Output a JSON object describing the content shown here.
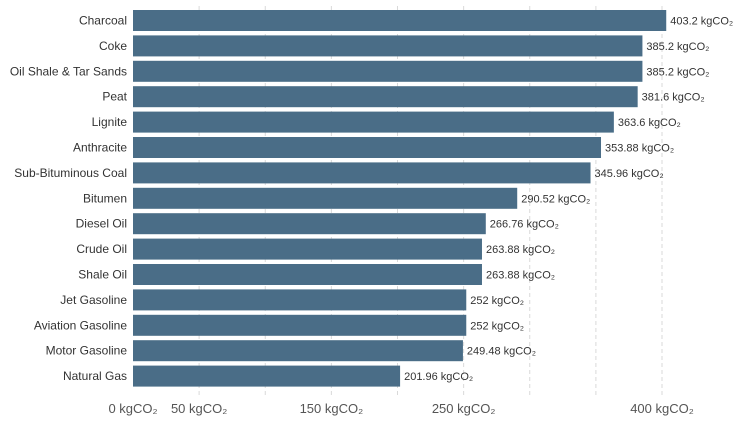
{
  "chart_data": {
    "type": "bar",
    "orientation": "horizontal",
    "categories": [
      "Charcoal",
      "Coke",
      "Oil Shale & Tar Sands",
      "Peat",
      "Lignite",
      "Anthracite",
      "Sub-Bituminous Coal",
      "Bitumen",
      "Diesel Oil",
      "Crude Oil",
      "Shale Oil",
      "Jet Gasoline",
      "Aviation Gasoline",
      "Motor Gasoline",
      "Natural Gas"
    ],
    "values": [
      403.2,
      385.2,
      385.2,
      381.6,
      363.6,
      353.88,
      345.96,
      290.52,
      266.76,
      263.88,
      263.88,
      252,
      252,
      249.48,
      201.96
    ],
    "value_labels": [
      "403.2 kgCO₂",
      "385.2 kgCO₂",
      "385.2 kgCO₂",
      "381.6 kgCO₂",
      "363.6 kgCO₂",
      "353.88 kgCO₂",
      "345.96 kgCO₂",
      "290.52 kgCO₂",
      "266.76 kgCO₂",
      "263.88 kgCO₂",
      "263.88 kgCO₂",
      "252 kgCO₂",
      "252 kgCO₂",
      "249.48 kgCO₂",
      "201.96 kgCO₂"
    ],
    "x_ticks": [
      {
        "value": 0,
        "label": "0 kgCO₂"
      },
      {
        "value": 50,
        "label": "50 kgCO₂"
      },
      {
        "value": 150,
        "label": "150 kgCO₂"
      },
      {
        "value": 250,
        "label": "250 kgCO₂"
      },
      {
        "value": 400,
        "label": "400 kgCO₂"
      }
    ],
    "gridlines": [
      50,
      100,
      150,
      200,
      250,
      300,
      350,
      400
    ],
    "xlim": [
      0,
      450
    ],
    "title": "",
    "xlabel": "",
    "ylabel": "",
    "grid": true,
    "bar_color": "#4a6d87"
  }
}
